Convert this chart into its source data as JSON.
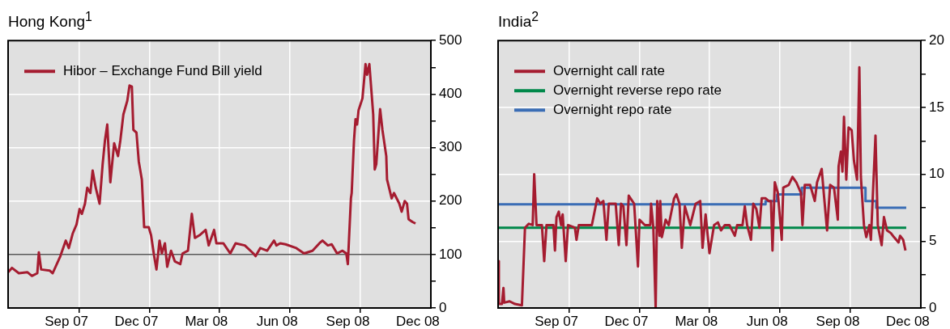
{
  "chart_data": [
    {
      "type": "line",
      "title": "Hong Kong$^{1}$",
      "legend": "top left",
      "grid": true,
      "xlim": [
        "2007-07-01",
        "2009-01-01"
      ],
      "xticks": [
        {
          "value": "2007-09-15",
          "label": "Sep 07"
        },
        {
          "value": "2007-10-01",
          "label": null
        },
        {
          "value": "2007-12-15",
          "label": "Dec 07"
        },
        {
          "value": "2008-01-01",
          "label": null
        },
        {
          "value": "2008-03-15",
          "label": "Mar 08"
        },
        {
          "value": "2008-04-01",
          "label": null
        },
        {
          "value": "2008-06-15",
          "label": "Jun 08"
        },
        {
          "value": "2008-07-01",
          "label": null
        },
        {
          "value": "2008-09-15",
          "label": "Sep 08"
        },
        {
          "value": "2008-10-01",
          "label": null
        },
        {
          "value": "2008-12-15",
          "label": "Dec 08"
        }
      ],
      "ylim": [
        0,
        500
      ],
      "yticks": [
        0,
        {
          "value": 50,
          "label": null
        },
        100,
        {
          "value": 150,
          "label": null
        },
        200,
        {
          "value": 250,
          "label": null
        },
        300,
        {
          "value": 350,
          "label": null
        },
        400,
        {
          "value": 450,
          "label": null
        },
        500
      ],
      "ref_lines": [
        {
          "axis": "y",
          "value": 100,
          "color": "#555555"
        }
      ],
      "series": [
        {
          "name": "Hibor – Exchange Fund Bill yield",
          "color": "#a51c30",
          "x": [
            "2007-07-01",
            "2007-07-06",
            "2007-07-15",
            "2007-07-26",
            "2007-08-01",
            "2007-08-08",
            "2007-08-10",
            "2007-08-13",
            "2007-08-24",
            "2007-08-28",
            "2007-09-07",
            "2007-09-14",
            "2007-09-18",
            "2007-09-23",
            "2007-09-28",
            "2007-10-02",
            "2007-10-05",
            "2007-10-09",
            "2007-10-12",
            "2007-10-16",
            "2007-10-19",
            "2007-10-23",
            "2007-10-28",
            "2007-11-01",
            "2007-11-04",
            "2007-11-07",
            "2007-11-11",
            "2007-11-16",
            "2007-11-21",
            "2007-11-24",
            "2007-11-28",
            "2007-12-03",
            "2007-12-06",
            "2007-12-09",
            "2007-12-11",
            "2007-12-15",
            "2007-12-18",
            "2007-12-22",
            "2007-12-25",
            "2007-12-31",
            "2008-01-03",
            "2008-01-07",
            "2008-01-10",
            "2008-01-14",
            "2008-01-17",
            "2008-01-21",
            "2008-01-24",
            "2008-01-29",
            "2008-02-03",
            "2008-02-10",
            "2008-02-13",
            "2008-02-20",
            "2008-02-25",
            "2008-02-29",
            "2008-03-06",
            "2008-03-14",
            "2008-03-18",
            "2008-03-25",
            "2008-03-28",
            "2008-04-06",
            "2008-04-15",
            "2008-04-22",
            "2008-05-04",
            "2008-05-15",
            "2008-05-18",
            "2008-05-24",
            "2008-06-02",
            "2008-06-11",
            "2008-06-14",
            "2008-06-19",
            "2008-06-26",
            "2008-07-10",
            "2008-07-20",
            "2008-07-31",
            "2008-08-09",
            "2008-08-13",
            "2008-08-20",
            "2008-08-25",
            "2008-09-01",
            "2008-09-08",
            "2008-09-13",
            "2008-09-15",
            "2008-09-19",
            "2008-09-20",
            "2008-09-23",
            "2008-09-25",
            "2008-09-27",
            "2008-09-29",
            "2008-10-04",
            "2008-10-08",
            "2008-10-10",
            "2008-10-13",
            "2008-10-18",
            "2008-10-20",
            "2008-10-22",
            "2008-10-27",
            "2008-10-30",
            "2008-11-04",
            "2008-11-05",
            "2008-11-11",
            "2008-11-14",
            "2008-11-21",
            "2008-11-24",
            "2008-11-28",
            "2008-12-01",
            "2008-12-03",
            "2008-12-08",
            "2008-12-12"
          ],
          "values": [
            67,
            75,
            65,
            67,
            60,
            65,
            104,
            72,
            70,
            65,
            97,
            126,
            112,
            139,
            156,
            185,
            176,
            195,
            225,
            215,
            257,
            225,
            195,
            269,
            313,
            343,
            235,
            308,
            284,
            313,
            362,
            387,
            416,
            414,
            333,
            328,
            274,
            240,
            151,
            151,
            136,
            97,
            72,
            126,
            102,
            121,
            77,
            107,
            87,
            82,
            102,
            107,
            176,
            131,
            136,
            146,
            117,
            146,
            121,
            121,
            102,
            121,
            117,
            102,
            97,
            112,
            107,
            126,
            117,
            121,
            119,
            112,
            102,
            107,
            121,
            126,
            117,
            119,
            102,
            107,
            102,
            82,
            205,
            215,
            313,
            353,
            343,
            370,
            392,
            456,
            436,
            456,
            362,
            259,
            269,
            372,
            333,
            284,
            240,
            205,
            215,
            195,
            180,
            200,
            195,
            166,
            161,
            158
          ]
        }
      ]
    },
    {
      "type": "line",
      "title": "India$^{2}$",
      "legend": "top left",
      "grid": true,
      "xlim": [
        "2007-07-01",
        "2009-01-01"
      ],
      "xticks": [
        {
          "value": "2007-09-15",
          "label": "Sep 07"
        },
        {
          "value": "2007-10-01",
          "label": null
        },
        {
          "value": "2007-12-15",
          "label": "Dec 07"
        },
        {
          "value": "2008-01-01",
          "label": null
        },
        {
          "value": "2008-03-15",
          "label": "Mar 08"
        },
        {
          "value": "2008-04-01",
          "label": null
        },
        {
          "value": "2008-06-15",
          "label": "Jun 08"
        },
        {
          "value": "2008-07-01",
          "label": null
        },
        {
          "value": "2008-09-15",
          "label": "Sep 08"
        },
        {
          "value": "2008-10-01",
          "label": null
        },
        {
          "value": "2008-12-15",
          "label": "Dec 08"
        }
      ],
      "ylim": [
        0,
        20
      ],
      "yticks": [
        0,
        {
          "value": 2.5,
          "label": null
        },
        5,
        {
          "value": 7.5,
          "label": null
        },
        10,
        {
          "value": 12.5,
          "label": null
        },
        15,
        {
          "value": 17.5,
          "label": null
        },
        20
      ],
      "series": [
        {
          "name": "Overnight call rate",
          "color": "#a51c30",
          "x": [
            "2007-07-01",
            "2007-07-02",
            "2007-07-06",
            "2007-07-08",
            "2007-07-09",
            "2007-07-16",
            "2007-07-23",
            "2007-08-01",
            "2007-08-05",
            "2007-08-10",
            "2007-08-15",
            "2007-08-17",
            "2007-08-20",
            "2007-08-27",
            "2007-08-30",
            "2007-09-02",
            "2007-09-11",
            "2007-09-13",
            "2007-09-15",
            "2007-09-18",
            "2007-09-21",
            "2007-09-23",
            "2007-09-27",
            "2007-09-30",
            "2007-10-09",
            "2007-10-11",
            "2007-10-14",
            "2007-10-31",
            "2007-11-07",
            "2007-11-11",
            "2007-11-15",
            "2007-11-19",
            "2007-11-22",
            "2007-12-01",
            "2007-12-05",
            "2007-12-08",
            "2007-12-11",
            "2007-12-15",
            "2007-12-18",
            "2007-12-25",
            "2007-12-30",
            "2008-01-01",
            "2008-01-08",
            "2008-01-15",
            "2008-01-16",
            "2008-01-19",
            "2008-01-22",
            "2008-01-24",
            "2008-01-27",
            "2008-01-28",
            "2008-01-30",
            "2008-02-04",
            "2008-02-08",
            "2008-02-15",
            "2008-02-18",
            "2008-02-22",
            "2008-02-25",
            "2008-02-29",
            "2008-03-07",
            "2008-03-14",
            "2008-03-20",
            "2008-03-23",
            "2008-03-27",
            "2008-04-01",
            "2008-04-07",
            "2008-04-12",
            "2008-04-16",
            "2008-04-21",
            "2008-04-27",
            "2008-05-04",
            "2008-05-07",
            "2008-05-14",
            "2008-05-17",
            "2008-05-20",
            "2008-05-25",
            "2008-05-28",
            "2008-06-01",
            "2008-06-05",
            "2008-06-08",
            "2008-06-13",
            "2008-06-17",
            "2008-06-20",
            "2008-06-22",
            "2008-06-25",
            "2008-06-29",
            "2008-07-04",
            "2008-07-06",
            "2008-07-13",
            "2008-07-18",
            "2008-07-23",
            "2008-07-29",
            "2008-07-31",
            "2008-08-03",
            "2008-08-10",
            "2008-08-16",
            "2008-08-19",
            "2008-08-25",
            "2008-08-28",
            "2008-09-01",
            "2008-09-05",
            "2008-09-10",
            "2008-09-15",
            "2008-09-16",
            "2008-09-19",
            "2008-09-21",
            "2008-09-23",
            "2008-09-26",
            "2008-09-29",
            "2008-10-03",
            "2008-10-06",
            "2008-10-10",
            "2008-10-13",
            "2008-10-15",
            "2008-10-19",
            "2008-10-22",
            "2008-10-26",
            "2008-10-28",
            "2008-11-03",
            "2008-11-06",
            "2008-11-11",
            "2008-11-14",
            "2008-11-18",
            "2008-11-23",
            "2008-11-27",
            "2008-12-03",
            "2008-12-05",
            "2008-12-09",
            "2008-12-12"
          ],
          "values": [
            3.5,
            0.3,
            0.3,
            1.5,
            0.4,
            0.5,
            0.3,
            0.2,
            6.0,
            6.3,
            6.2,
            10.0,
            6.2,
            6.2,
            3.5,
            6.2,
            6.2,
            4.3,
            6.8,
            7.2,
            6.2,
            7.0,
            3.5,
            6.2,
            6.0,
            5.1,
            6.2,
            6.2,
            8.2,
            7.8,
            8.0,
            5.1,
            7.8,
            7.8,
            4.7,
            7.8,
            7.6,
            4.7,
            8.4,
            7.8,
            3.1,
            6.6,
            6.2,
            6.2,
            7.8,
            6.0,
            0,
            8.0,
            5.4,
            8.0,
            5.3,
            6.6,
            6.2,
            8.2,
            8.5,
            7.8,
            4.5,
            7.6,
            6.2,
            7.8,
            8.0,
            4.5,
            7.0,
            4.1,
            6.2,
            6.4,
            5.8,
            6.2,
            6.2,
            5.4,
            6.2,
            6.2,
            7.6,
            6.2,
            5.1,
            7.8,
            7.4,
            6.0,
            8.2,
            8.2,
            8.0,
            8.0,
            4.3,
            9.4,
            8.6,
            5.1,
            9.0,
            9.2,
            9.8,
            9.4,
            8.6,
            6.2,
            9.2,
            9.2,
            8.0,
            9.4,
            10.4,
            8.4,
            5.8,
            9.2,
            9.0,
            6.6,
            10.6,
            11.7,
            10.2,
            14.3,
            9.6,
            13.5,
            13.3,
            11.0,
            9.6,
            18.0,
            9.8,
            6.2,
            5.3,
            6.2,
            5.1,
            12.9,
            6.2,
            4.7,
            6.8,
            5.8,
            5.6,
            5.3,
            4.9,
            5.4,
            5.1,
            4.3
          ]
        },
        {
          "name": "Overnight reverse repo rate",
          "color": "#00884a",
          "type": "step",
          "x": [
            "2007-07-01",
            "2008-12-13"
          ],
          "values": [
            6,
            6
          ]
        },
        {
          "name": "Overnight repo rate",
          "color": "#3a6db5",
          "type": "step",
          "x": [
            "2007-07-01",
            "2008-06-13",
            "2008-06-28",
            "2008-07-30",
            "2008-10-21",
            "2008-11-04",
            "2008-12-13"
          ],
          "values": [
            7.75,
            8.0,
            8.5,
            9.0,
            8.0,
            7.5,
            7.5
          ]
        }
      ]
    }
  ]
}
